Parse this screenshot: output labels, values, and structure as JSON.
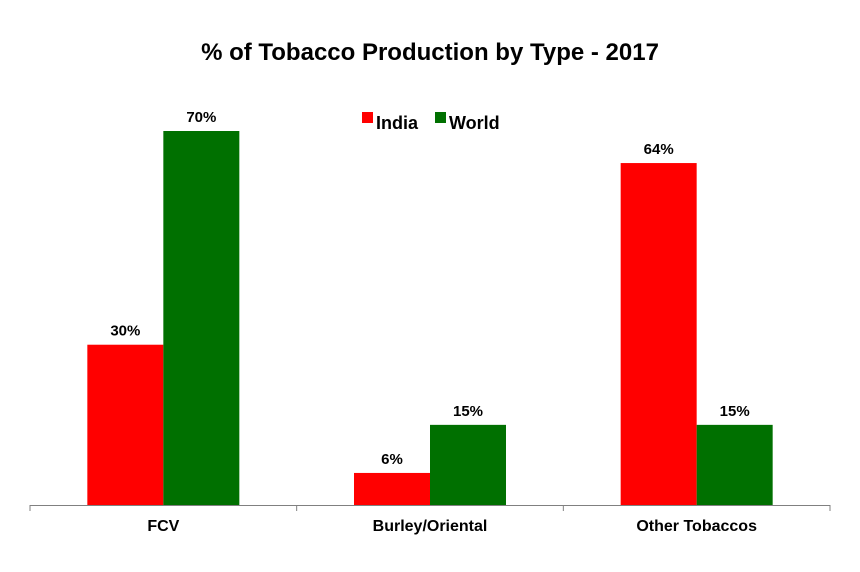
{
  "chart_data": {
    "type": "bar",
    "title": "% of Tobacco Production by Type - 2017",
    "categories": [
      "FCV",
      "Burley/Oriental",
      "Other Tobaccos"
    ],
    "series": [
      {
        "name": "India",
        "color": "#ff0000",
        "values": [
          30,
          6,
          64
        ],
        "labels": [
          "30%",
          "6%",
          "64%"
        ]
      },
      {
        "name": "World",
        "color": "#007000",
        "values": [
          70,
          15,
          15
        ],
        "labels": [
          "70%",
          "15%",
          "15%"
        ]
      }
    ],
    "value_unit": "%",
    "ylim": [
      0,
      70
    ],
    "grid": false,
    "legend": "top-center",
    "xlabel": "",
    "ylabel": ""
  }
}
